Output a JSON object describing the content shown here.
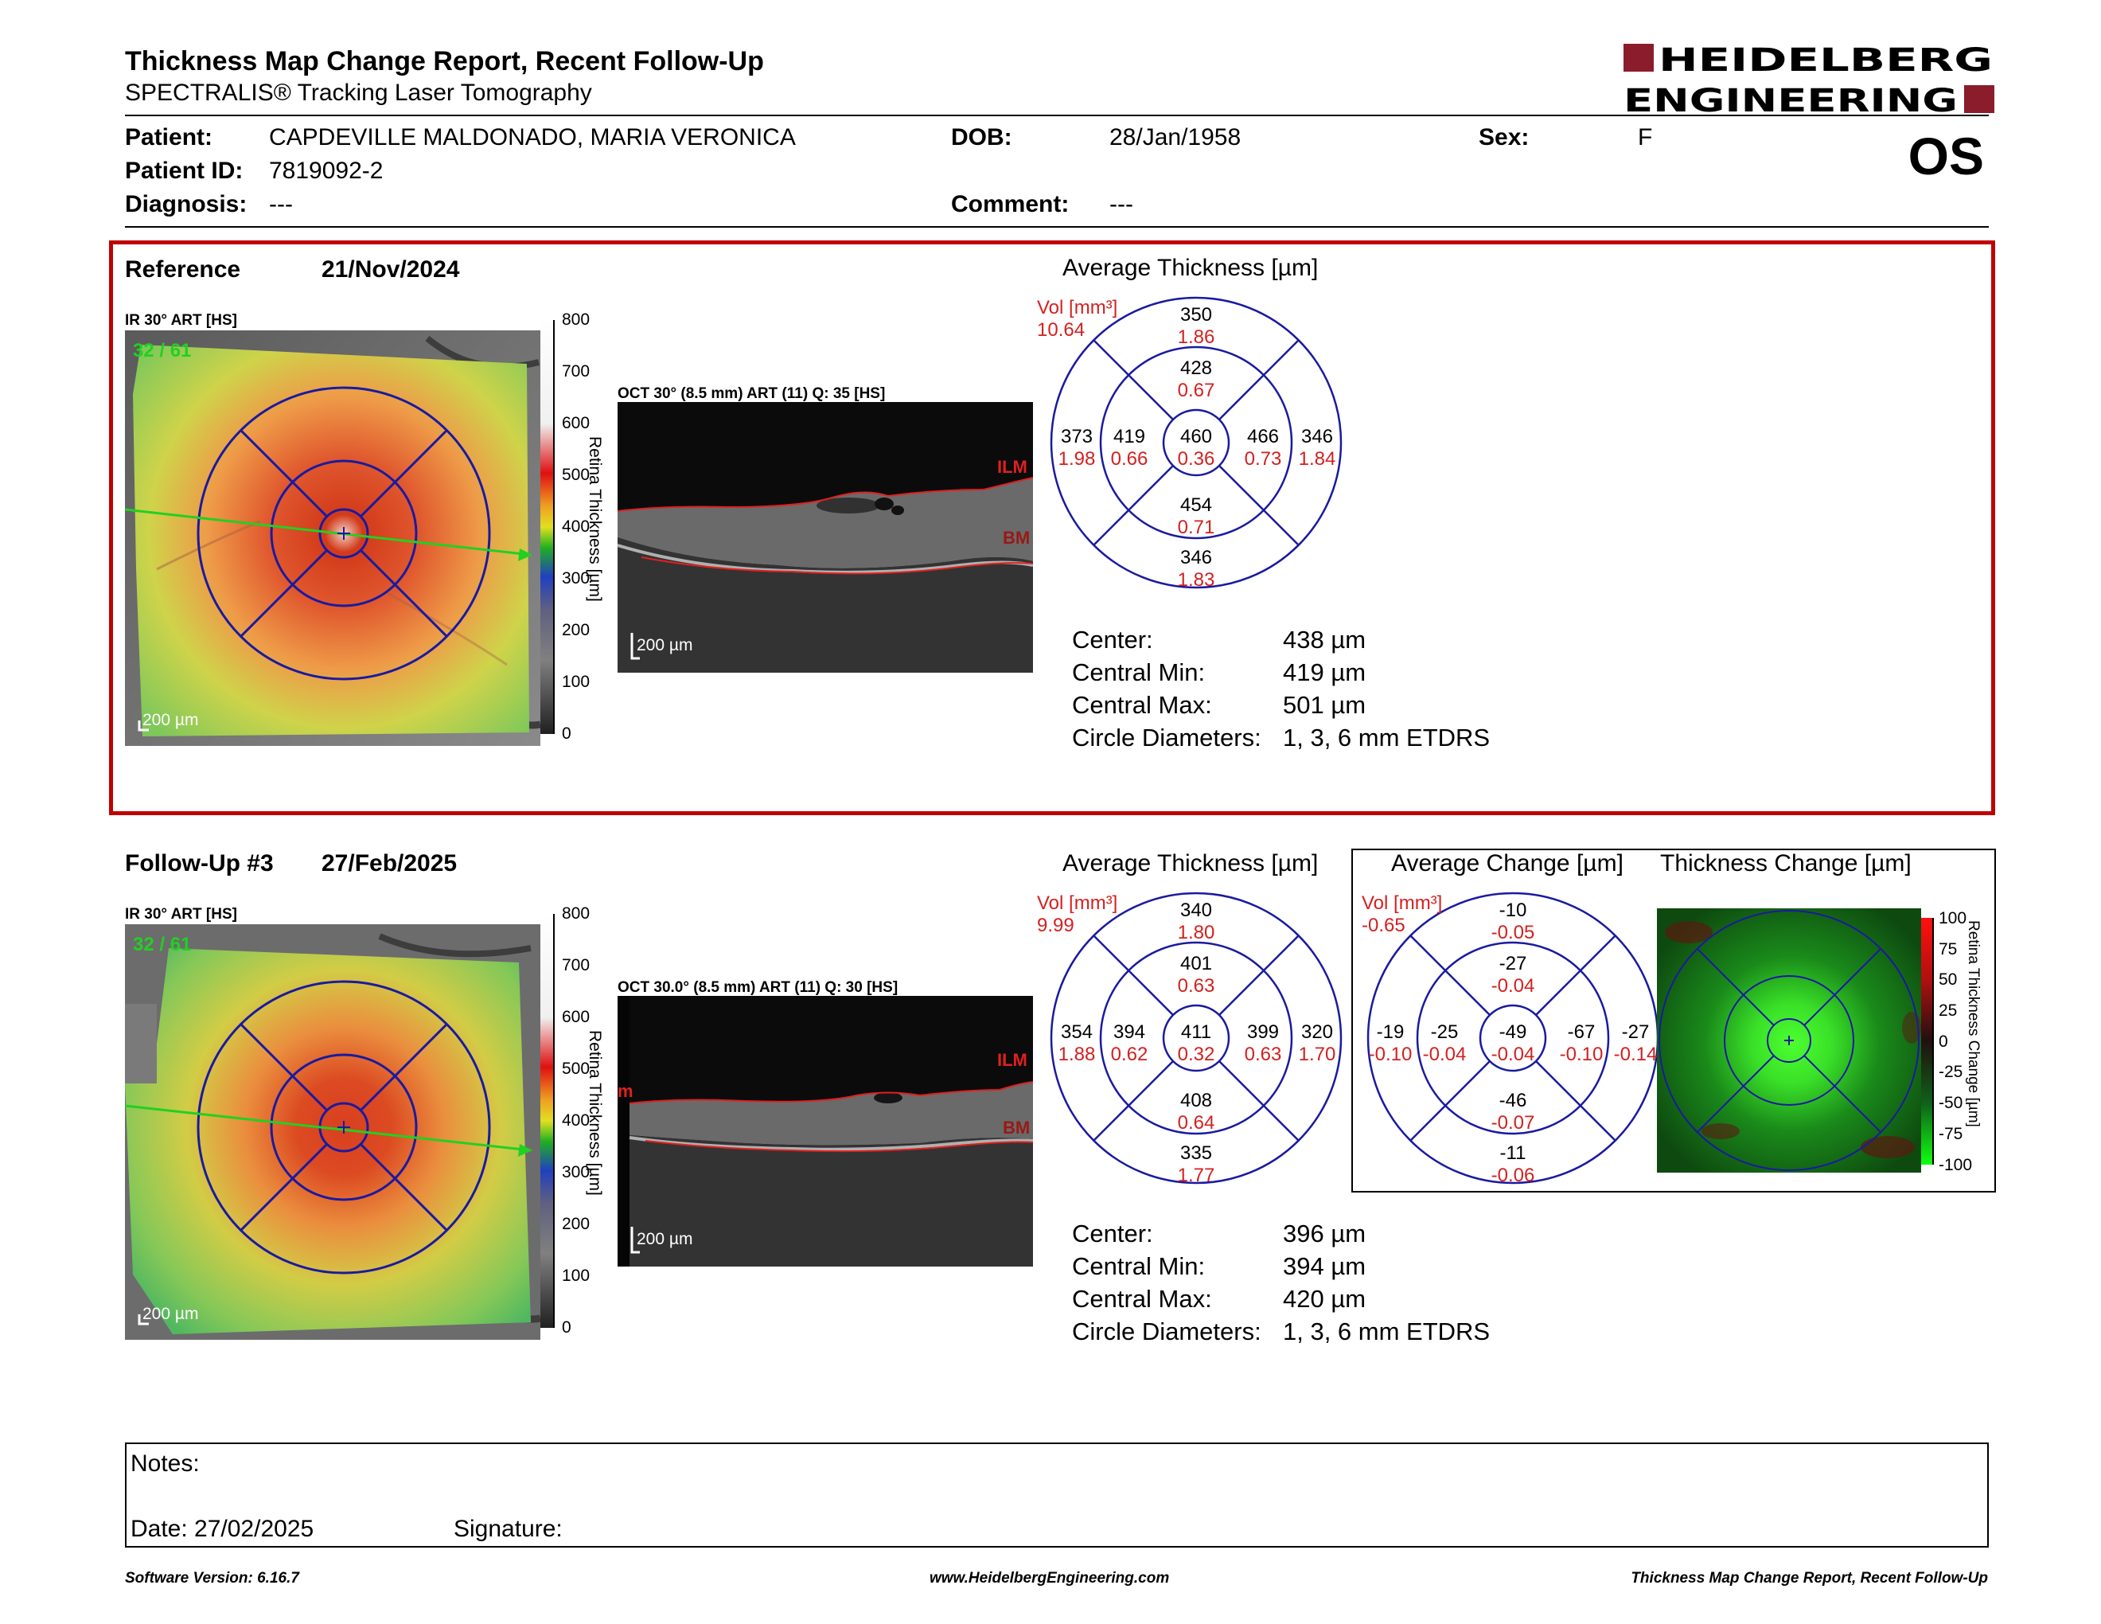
{
  "header": {
    "title": "Thickness Map Change Report, Recent Follow-Up",
    "subtitle": "SPECTRALIS® Tracking Laser Tomography",
    "logo_line1": "HEIDELBERG",
    "logo_line2": "ENGINEERING",
    "eye": "OS"
  },
  "patient": {
    "patient_label": "Patient:",
    "patient_value": "CAPDEVILLE MALDONADO, MARIA VERONICA",
    "dob_label": "DOB:",
    "dob_value": "28/Jan/1958",
    "sex_label": "Sex:",
    "sex_value": "F",
    "id_label": "Patient ID:",
    "id_value": "7819092-2",
    "diagnosis_label": "Diagnosis:",
    "diagnosis_value": "---",
    "comment_label": "Comment:",
    "comment_value": "---"
  },
  "reference": {
    "label": "Reference",
    "date": "21/Nov/2024",
    "ir_caption": "IR 30° ART [HS]",
    "ir_counter": "32 / 61",
    "oct_caption": "OCT 30° (8.5 mm) ART (11) Q: 35 [HS]",
    "scale_label": "200 µm",
    "ilm": "ILM",
    "bm": "BM",
    "colorbar_ticks": [
      "800",
      "700",
      "600",
      "500",
      "400",
      "300",
      "200",
      "100",
      "0"
    ],
    "colorbar_title": "Retina Thickness [µm]",
    "avg_title": "Average Thickness [µm]",
    "vol_label": "Vol [mm³]",
    "vol_total": "10.64",
    "grid": {
      "sup_outer": [
        "350",
        "1.86"
      ],
      "sup_inner": [
        "428",
        "0.67"
      ],
      "temp_outer": [
        "373",
        "1.98"
      ],
      "temp_inner": [
        "419",
        "0.66"
      ],
      "center": [
        "460",
        "0.36"
      ],
      "nas_inner": [
        "466",
        "0.73"
      ],
      "nas_outer": [
        "346",
        "1.84"
      ],
      "inf_inner": [
        "454",
        "0.71"
      ],
      "inf_outer": [
        "346",
        "1.83"
      ]
    },
    "stats": {
      "center_label": "Center:",
      "center_value": "438 µm",
      "min_label": "Central Min:",
      "min_value": "419 µm",
      "max_label": "Central Max:",
      "max_value": "501 µm",
      "diam_label": "Circle Diameters:",
      "diam_value": "1, 3, 6 mm ETDRS"
    }
  },
  "followup": {
    "label": "Follow-Up #3",
    "date": "27/Feb/2025",
    "ir_caption": "IR 30° ART [HS]",
    "ir_counter": "32 / 61",
    "oct_caption": "OCT 30.0° (8.5 mm) ART (11) Q: 30 [HS]",
    "scale_label": "200 µm",
    "ilm": "ILM",
    "bm": "BM",
    "edge_mark": "m",
    "colorbar_ticks": [
      "800",
      "700",
      "600",
      "500",
      "400",
      "300",
      "200",
      "100",
      "0"
    ],
    "colorbar_title": "Retina Thickness [µm]",
    "avg_title": "Average Thickness [µm]",
    "vol_label": "Vol [mm³]",
    "vol_total": "9.99",
    "grid": {
      "sup_outer": [
        "340",
        "1.80"
      ],
      "sup_inner": [
        "401",
        "0.63"
      ],
      "temp_outer": [
        "354",
        "1.88"
      ],
      "temp_inner": [
        "394",
        "0.62"
      ],
      "center": [
        "411",
        "0.32"
      ],
      "nas_inner": [
        "399",
        "0.63"
      ],
      "nas_outer": [
        "320",
        "1.70"
      ],
      "inf_inner": [
        "408",
        "0.64"
      ],
      "inf_outer": [
        "335",
        "1.77"
      ]
    },
    "stats": {
      "center_label": "Center:",
      "center_value": "396 µm",
      "min_label": "Central Min:",
      "min_value": "394 µm",
      "max_label": "Central Max:",
      "max_value": "420 µm",
      "diam_label": "Circle Diameters:",
      "diam_value": "1, 3, 6 mm ETDRS"
    },
    "change_title": "Average Change [µm]",
    "change_vol_label": "Vol [mm³]",
    "change_vol_total": "-0.65",
    "change_grid": {
      "sup_outer": [
        "-10",
        "-0.05"
      ],
      "sup_inner": [
        "-27",
        "-0.04"
      ],
      "temp_outer": [
        "-19",
        "-0.10"
      ],
      "temp_inner": [
        "-25",
        "-0.04"
      ],
      "center": [
        "-49",
        "-0.04"
      ],
      "nas_inner": [
        "-67",
        "-0.10"
      ],
      "nas_outer": [
        "-27",
        "-0.14"
      ],
      "inf_inner": [
        "-46",
        "-0.07"
      ],
      "inf_outer": [
        "-11",
        "-0.06"
      ]
    },
    "thick_change_title": "Thickness Change [µm]",
    "change_bar_ticks": [
      "100",
      "75",
      "50",
      "25",
      "0",
      "-25",
      "-50",
      "-75",
      "-100"
    ],
    "change_bar_title": "Retina Thickness Change [µm]"
  },
  "notes": {
    "notes_label": "Notes:",
    "date_label": "Date: 27/02/2025",
    "signature_label": "Signature:"
  },
  "footer": {
    "software": "Software Version: 6.16.7",
    "website": "www.HeidelbergEngineering.com",
    "report": "Thickness Map Change Report, Recent Follow-Up"
  },
  "colors": {
    "frame_red": "#c00000",
    "grid_blue": "#1a1aa0",
    "value_red": "#d42020",
    "logo_red": "#8b1c2c"
  }
}
